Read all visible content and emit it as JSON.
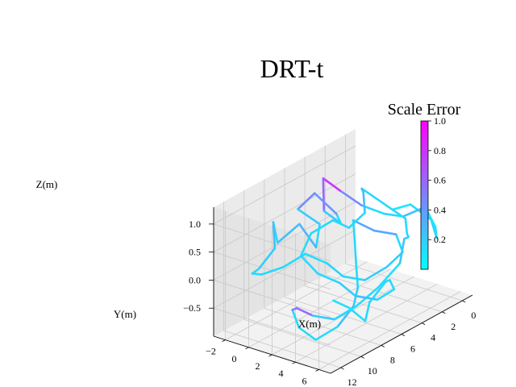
{
  "chart_data": {
    "type": "line",
    "projection": "3d",
    "title": "DRT-t",
    "xlabel": "X(m)",
    "ylabel": "Y(m)",
    "zlabel": "Z(m)",
    "x_ticks": [
      "0",
      "2",
      "4",
      "6",
      "8",
      "10",
      "12"
    ],
    "y_ticks": [
      "−2",
      "0",
      "2",
      "4",
      "6"
    ],
    "z_ticks": [
      "1.0",
      "0.5",
      "0.0",
      "−0.5"
    ],
    "xlim": [
      -1,
      13
    ],
    "ylim": [
      -3,
      7
    ],
    "zlim": [
      -1,
      1.3
    ],
    "grid": true,
    "colormap": "cool",
    "colorbar": {
      "title": "Scale Error",
      "range": [
        0,
        1.0
      ],
      "ticks": [
        "1.0",
        "0.8",
        "0.6",
        "0.4",
        "0.2"
      ],
      "color_low": "#00ffff",
      "color_high": "#ff00ff"
    },
    "series": [
      {
        "points": [
          [
            1,
            2,
            0.4,
            0.1
          ],
          [
            0.5,
            3,
            0.5,
            0.1
          ],
          [
            0.2,
            4.5,
            0.3,
            0.2
          ],
          [
            0.8,
            5.5,
            0.1,
            0.15
          ],
          [
            1.5,
            6,
            0.4,
            0.1
          ],
          [
            1.2,
            5,
            0.6,
            0.1
          ],
          [
            0.6,
            4,
            0.5,
            0.3
          ],
          [
            1.8,
            3.5,
            0.45,
            0.2
          ],
          [
            2.5,
            2.5,
            0.5,
            0.1
          ],
          [
            3,
            1,
            0.6,
            0.2
          ],
          [
            4,
            0,
            0.9,
            0.7
          ],
          [
            4.5,
            -1,
            1.1,
            0.9
          ],
          [
            5,
            -0.5,
            0.6,
            0.3
          ],
          [
            4.5,
            0.5,
            0.4,
            0.1
          ],
          [
            5.5,
            1,
            0.7,
            0.2
          ],
          [
            6.5,
            0,
            1.1,
            0.6
          ],
          [
            7,
            -1,
            0.8,
            0.3
          ],
          [
            6,
            0,
            0.5,
            0.1
          ],
          [
            7.5,
            1,
            0.3,
            0.2
          ],
          [
            8,
            0,
            0.7,
            0.4
          ],
          [
            9,
            -1,
            0.4,
            0.1
          ],
          [
            10,
            -0.5,
            0.9,
            0.2
          ],
          [
            11,
            0.5,
            0.6,
            0.3
          ],
          [
            12,
            0,
            0.3,
            0.1
          ],
          [
            11.5,
            -1,
            0.1,
            0.2
          ],
          [
            10,
            -1.5,
            -0.1,
            0.1
          ],
          [
            9,
            -0.5,
            0.0,
            0.2
          ],
          [
            8,
            0.5,
            0.2,
            0.1
          ],
          [
            7,
            1.5,
            0.0,
            0.15
          ],
          [
            6,
            2,
            -0.3,
            0.2
          ],
          [
            5,
            3,
            -0.4,
            0.1
          ],
          [
            4,
            4,
            -0.2,
            0.3
          ],
          [
            3,
            4.5,
            0.0,
            0.1
          ],
          [
            2.5,
            3.5,
            0.2,
            0.2
          ],
          [
            3.5,
            2.5,
            0.3,
            0.5
          ],
          [
            5,
            2,
            0.6,
            0.2
          ],
          [
            6,
            3,
            0.4,
            0.1
          ],
          [
            7,
            4,
            0.1,
            0.2
          ],
          [
            8,
            5,
            -0.1,
            0.1
          ],
          [
            9,
            5.5,
            -0.3,
            0.3
          ],
          [
            10,
            5,
            -0.6,
            0.2
          ],
          [
            11,
            4,
            -0.8,
            0.1
          ],
          [
            11.5,
            3,
            -0.6,
            0.2
          ],
          [
            11,
            2,
            -0.4,
            0.1
          ],
          [
            10,
            1.5,
            -0.5,
            0.85
          ],
          [
            9,
            2,
            -0.7,
            0.3
          ],
          [
            8,
            3,
            -0.8,
            0.1
          ],
          [
            7,
            4,
            -0.6,
            0.2
          ],
          [
            6,
            5,
            -0.3,
            0.1
          ],
          [
            5,
            6,
            0.1,
            0.15
          ],
          [
            4,
            5.5,
            0.4,
            0.3
          ],
          [
            3,
            5,
            0.3,
            0.1
          ],
          [
            2,
            4,
            0.2,
            0.2
          ],
          [
            1,
            3,
            0.3,
            0.1
          ],
          [
            2,
            2,
            0.6,
            0.2
          ],
          [
            3,
            1,
            0.9,
            0.1
          ],
          [
            4,
            2,
            1.0,
            0.4
          ],
          [
            5,
            3,
            0.8,
            0.1
          ],
          [
            6,
            2.5,
            0.6,
            0.2
          ],
          [
            7,
            2,
            0.8,
            0.1
          ],
          [
            8,
            1,
            0.6,
            0.2
          ],
          [
            9,
            1,
            0.3,
            0.1
          ],
          [
            8.5,
            2,
            0.0,
            0.2
          ],
          [
            7.5,
            3,
            -0.2,
            0.1
          ],
          [
            6.5,
            3.5,
            -0.5,
            0.3
          ],
          [
            5.5,
            4.5,
            -0.6,
            0.2
          ],
          [
            5,
            5.5,
            -0.4,
            0.1
          ],
          [
            6,
            6,
            -0.1,
            0.2
          ],
          [
            7,
            6.5,
            0.0,
            0.1
          ],
          [
            8,
            6,
            -0.3,
            0.2
          ],
          [
            9,
            6.5,
            -0.5,
            0.1
          ],
          [
            10,
            6,
            -0.2,
            0.15
          ],
          [
            11,
            5.5,
            0.0,
            0.1
          ]
        ]
      }
    ]
  }
}
